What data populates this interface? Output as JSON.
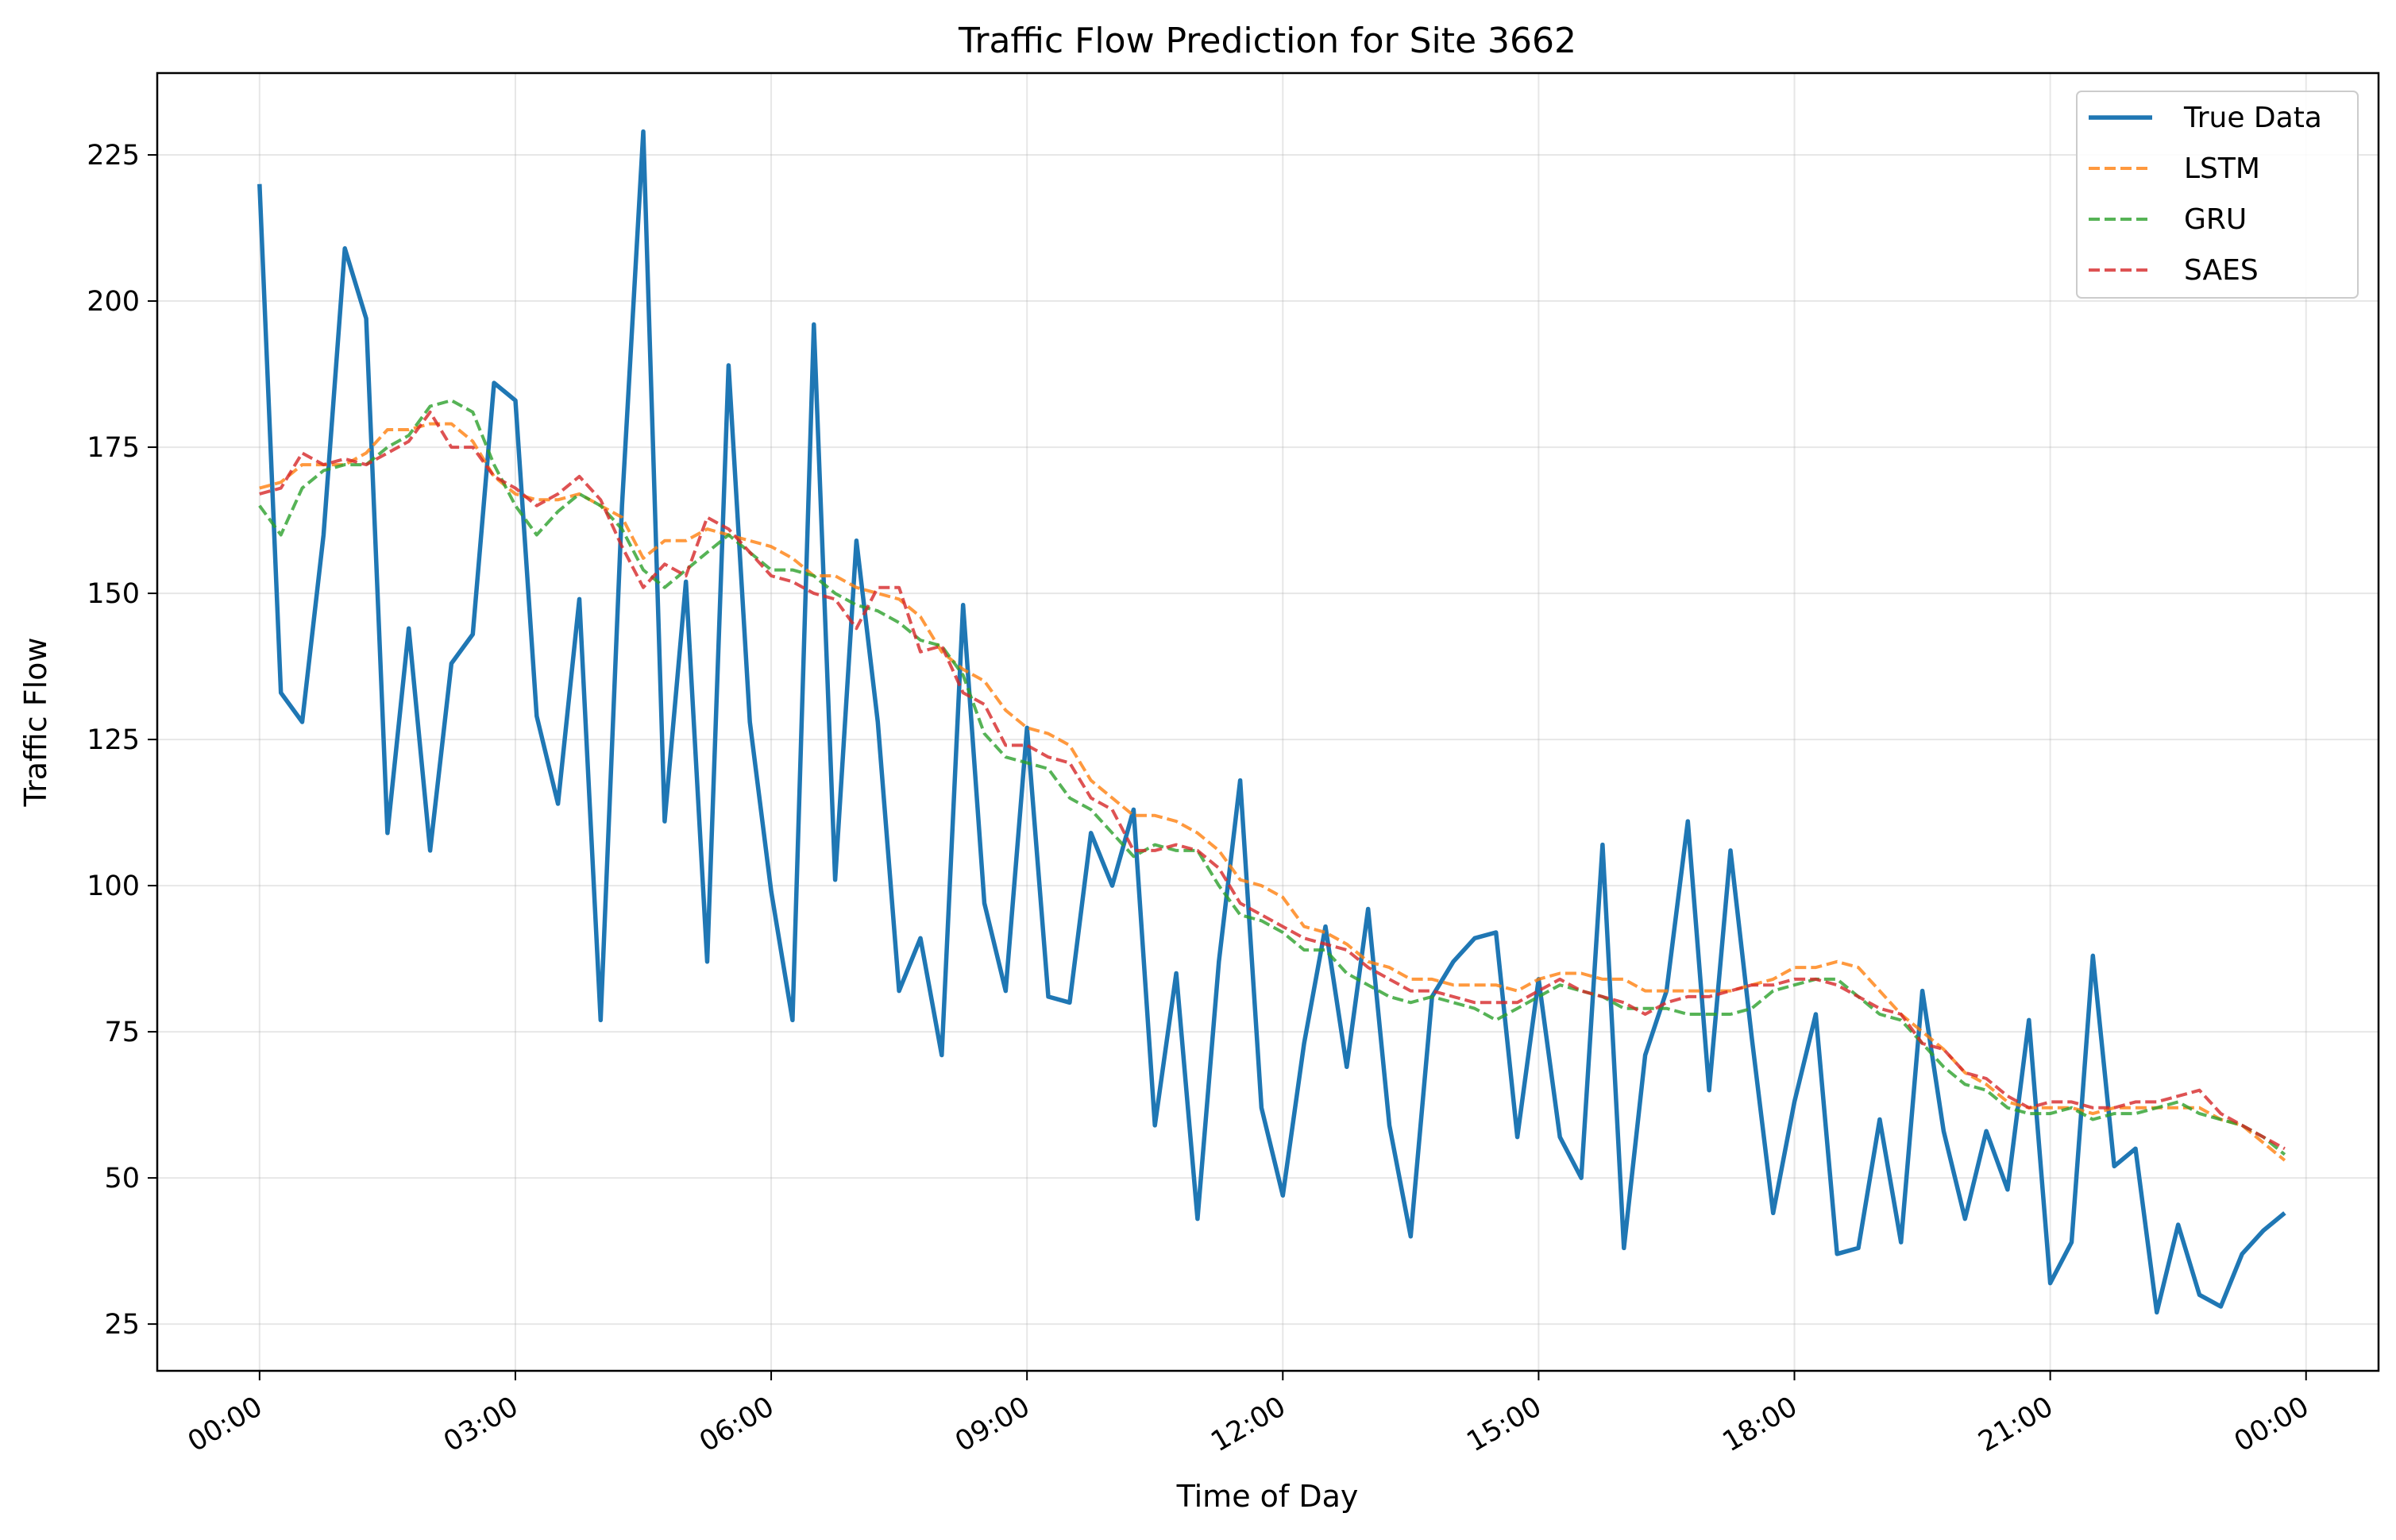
{
  "chart_data": {
    "type": "line",
    "title": "Traffic Flow Prediction for Site 3662",
    "xlabel": "Time of Day",
    "ylabel": "Traffic Flow",
    "x_ticks": [
      "00:00",
      "03:00",
      "06:00",
      "09:00",
      "12:00",
      "15:00",
      "18:00",
      "21:00",
      "00:00"
    ],
    "x_tick_hours": [
      0,
      3,
      6,
      9,
      12,
      15,
      18,
      21,
      24
    ],
    "x_range_hours": [
      -1.2,
      24.85
    ],
    "y_ticks": [
      25,
      50,
      75,
      100,
      125,
      150,
      175,
      200,
      225
    ],
    "ylim": [
      17,
      239
    ],
    "grid": true,
    "legend_position": "top-right",
    "time_step_minutes": 15,
    "series": [
      {
        "name": "True Data",
        "color": "#1f77b4",
        "style": "solid",
        "start": "00:00",
        "values": [
          220,
          133,
          128,
          160,
          209,
          197,
          109,
          144,
          106,
          138,
          143,
          186,
          183,
          129,
          114,
          149,
          77,
          165,
          229,
          111,
          152,
          87,
          189,
          128,
          99,
          77,
          196,
          101,
          159,
          128,
          82,
          91,
          71,
          148,
          97,
          82,
          127,
          81,
          80,
          109,
          100,
          113,
          59,
          85,
          43,
          87,
          118,
          62,
          47,
          73,
          93,
          69,
          96,
          59,
          40,
          81,
          87,
          91,
          92,
          57,
          84,
          57,
          50,
          107,
          38,
          71,
          82,
          111,
          65,
          106,
          74,
          44,
          63,
          78,
          37,
          38,
          60,
          39,
          82,
          58,
          43,
          58,
          48,
          77,
          32,
          39,
          88,
          52,
          55,
          27,
          42,
          30,
          28,
          37,
          41,
          44
        ]
      },
      {
        "name": "LSTM",
        "color": "#ff7f0e",
        "style": "dashed",
        "start": "00:00",
        "values": [
          168,
          169,
          172,
          172,
          172,
          174,
          178,
          178,
          179,
          179,
          176,
          170,
          167,
          166,
          166,
          167,
          165,
          163,
          156,
          159,
          159,
          161,
          160,
          159,
          158,
          156,
          153,
          153,
          151,
          150,
          149,
          146,
          140,
          137,
          135,
          130,
          127,
          126,
          124,
          118,
          115,
          112,
          112,
          111,
          109,
          106,
          101,
          100,
          98,
          93,
          92,
          90,
          87,
          86,
          84,
          84,
          83,
          83,
          83,
          82,
          84,
          85,
          85,
          84,
          84,
          82,
          82,
          82,
          82,
          82,
          83,
          84,
          86,
          86,
          87,
          86,
          82,
          78,
          75,
          72,
          68,
          66,
          63,
          62,
          62,
          62,
          61,
          62,
          62,
          62,
          62,
          62,
          60,
          59,
          56,
          53
        ]
      },
      {
        "name": "GRU",
        "color": "#2ca02c",
        "style": "dashed",
        "start": "00:00",
        "values": [
          165,
          160,
          168,
          171,
          172,
          172,
          175,
          177,
          182,
          183,
          181,
          172,
          165,
          160,
          164,
          167,
          165,
          161,
          154,
          151,
          154,
          157,
          160,
          157,
          154,
          154,
          153,
          150,
          148,
          147,
          145,
          142,
          141,
          136,
          126,
          122,
          121,
          120,
          115,
          113,
          109,
          105,
          107,
          106,
          106,
          100,
          95,
          94,
          92,
          89,
          89,
          85,
          83,
          81,
          80,
          81,
          80,
          79,
          77,
          79,
          81,
          83,
          82,
          81,
          79,
          79,
          79,
          78,
          78,
          78,
          79,
          82,
          83,
          84,
          84,
          81,
          78,
          77,
          73,
          69,
          66,
          65,
          62,
          61,
          61,
          62,
          60,
          61,
          61,
          62,
          63,
          61,
          60,
          59,
          57,
          54
        ]
      },
      {
        "name": "SAES",
        "color": "#d62728",
        "style": "dashed",
        "start": "00:00",
        "values": [
          167,
          168,
          174,
          172,
          173,
          172,
          174,
          176,
          181,
          175,
          175,
          170,
          168,
          165,
          167,
          170,
          166,
          158,
          151,
          155,
          153,
          163,
          161,
          157,
          153,
          152,
          150,
          149,
          144,
          151,
          151,
          140,
          141,
          133,
          131,
          124,
          124,
          122,
          121,
          115,
          113,
          106,
          106,
          107,
          106,
          103,
          97,
          95,
          93,
          91,
          90,
          89,
          86,
          84,
          82,
          82,
          81,
          80,
          80,
          80,
          82,
          84,
          82,
          81,
          80,
          78,
          80,
          81,
          81,
          82,
          83,
          83,
          84,
          84,
          83,
          81,
          79,
          78,
          73,
          72,
          68,
          67,
          64,
          62,
          63,
          63,
          62,
          62,
          63,
          63,
          64,
          65,
          61,
          59,
          57,
          55
        ]
      }
    ]
  }
}
